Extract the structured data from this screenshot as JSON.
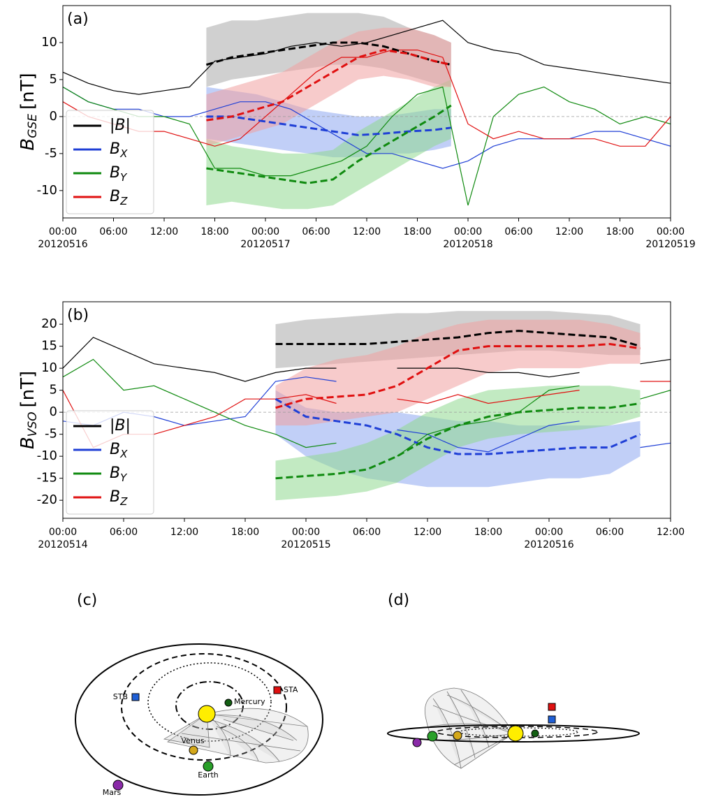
{
  "chart_data": [
    {
      "type": "line",
      "panel": "(a)",
      "ylabel": {
        "text": "B",
        "sub": "GSE",
        "unit": "[nT]"
      },
      "xlim": [
        0,
        72
      ],
      "ylim": [
        -13.7,
        15
      ],
      "xticks": [
        {
          "value": 0,
          "label": "00:00"
        },
        {
          "value": 6,
          "label": "06:00"
        },
        {
          "value": 12,
          "label": "12:00"
        },
        {
          "value": 18,
          "label": "18:00"
        },
        {
          "value": 24,
          "label": "00:00"
        },
        {
          "value": 30,
          "label": "06:00"
        },
        {
          "value": 36,
          "label": "12:00"
        },
        {
          "value": 42,
          "label": "18:00"
        },
        {
          "value": 48,
          "label": "00:00"
        },
        {
          "value": 54,
          "label": "06:00"
        },
        {
          "value": 60,
          "label": "12:00"
        },
        {
          "value": 66,
          "label": "18:00"
        },
        {
          "value": 72,
          "label": "00:00"
        }
      ],
      "xdates": [
        {
          "value": 0,
          "label": "20120516"
        },
        {
          "value": 24,
          "label": "20120517"
        },
        {
          "value": 48,
          "label": "20120518"
        },
        {
          "value": 72,
          "label": "20120519"
        }
      ],
      "yticks": [
        -10,
        -5,
        0,
        5,
        10
      ],
      "hline": 0,
      "legend": "lower left",
      "series": [
        {
          "name": "|B|",
          "color": "#000000",
          "x": [
            0,
            3,
            6,
            9,
            12,
            15,
            18,
            21,
            24,
            27,
            30,
            33,
            36,
            39,
            42,
            45,
            48,
            51,
            54,
            57,
            60,
            63,
            66,
            69,
            72
          ],
          "values": [
            6,
            4.5,
            3.5,
            3,
            3.5,
            4,
            7.5,
            8,
            8.5,
            9.5,
            10,
            9.5,
            10,
            11,
            12,
            13,
            10,
            9,
            8.5,
            7,
            6.5,
            6,
            5.5,
            5,
            4.5
          ]
        },
        {
          "name": "B",
          "sub": "X",
          "color": "#1f3fd6",
          "x": [
            0,
            3,
            6,
            9,
            12,
            15,
            18,
            21,
            24,
            27,
            30,
            33,
            36,
            39,
            42,
            45,
            48,
            51,
            54,
            57,
            60,
            63,
            66,
            69,
            72
          ],
          "values": [
            4,
            2,
            1,
            1,
            0,
            0,
            1,
            2,
            2,
            1,
            -1,
            -3,
            -5,
            -5,
            -6,
            -7,
            -6,
            -4,
            -3,
            -3,
            -3,
            -2,
            -2,
            -3,
            -4
          ]
        },
        {
          "name": "B",
          "sub": "Y",
          "color": "#0f8a0f",
          "x": [
            0,
            3,
            6,
            9,
            12,
            15,
            18,
            21,
            24,
            27,
            30,
            33,
            36,
            39,
            42,
            45,
            48,
            51,
            54,
            57,
            60,
            63,
            66,
            69,
            72
          ],
          "values": [
            4,
            2,
            1,
            0,
            0,
            -1,
            -7,
            -7,
            -8,
            -8,
            -7,
            -6,
            -4,
            0,
            3,
            4,
            -12,
            0,
            3,
            4,
            2,
            1,
            -1,
            0,
            -1
          ]
        },
        {
          "name": "B",
          "sub": "Z",
          "color": "#e01010",
          "x": [
            0,
            3,
            6,
            9,
            12,
            15,
            18,
            21,
            24,
            27,
            30,
            33,
            36,
            39,
            42,
            45,
            48,
            51,
            54,
            57,
            60,
            63,
            66,
            69,
            72
          ],
          "values": [
            2,
            0,
            -1,
            -2,
            -2,
            -3,
            -4,
            -3,
            0,
            3,
            6,
            8,
            8,
            9,
            9,
            8,
            -1,
            -3,
            -2,
            -3,
            -3,
            -3,
            -4,
            -4,
            0
          ]
        },
        {
          "dashed": true,
          "color": "#000000",
          "band_color": "#a9a9a9",
          "x": [
            17,
            20,
            23,
            26,
            29,
            32,
            35,
            38,
            41,
            44,
            46
          ],
          "values": [
            7,
            8,
            8.5,
            9,
            9.5,
            10,
            10,
            9.5,
            8.5,
            7.5,
            7
          ],
          "lower": [
            4,
            5,
            5.5,
            6,
            6.5,
            7,
            7,
            6.5,
            5.5,
            4.5,
            4
          ],
          "upper": [
            12,
            13,
            13,
            13.5,
            14,
            14,
            14,
            13.5,
            12,
            11,
            10
          ]
        },
        {
          "dashed": true,
          "color": "#1f3fd6",
          "band_color": "#8ea8f0",
          "x": [
            17,
            20,
            23,
            26,
            29,
            32,
            35,
            38,
            41,
            44,
            46
          ],
          "values": [
            0,
            0,
            -0.5,
            -1,
            -1.5,
            -2,
            -2.5,
            -2.3,
            -2,
            -1.8,
            -1.5
          ],
          "lower": [
            -3,
            -3.5,
            -4,
            -4.5,
            -5,
            -5.5,
            -5.5,
            -5,
            -5,
            -4.5,
            -4
          ],
          "upper": [
            4,
            3.5,
            3,
            2,
            1,
            0.5,
            0,
            0,
            0.5,
            1,
            1
          ]
        },
        {
          "dashed": true,
          "color": "#0f8a0f",
          "band_color": "#8fd88f",
          "x": [
            17,
            20,
            23,
            26,
            29,
            32,
            35,
            38,
            41,
            44,
            46
          ],
          "values": [
            -7,
            -7.5,
            -8,
            -8.5,
            -9,
            -8.5,
            -6,
            -4,
            -2,
            0,
            1.5
          ],
          "lower": [
            -12,
            -11.5,
            -12,
            -12.5,
            -12.5,
            -12,
            -10,
            -8,
            -6,
            -4,
            -3
          ],
          "upper": [
            -3,
            -4,
            -4.5,
            -5,
            -5,
            -4.5,
            -2,
            0,
            2,
            4,
            5
          ]
        },
        {
          "dashed": true,
          "color": "#e01010",
          "band_color": "#f0a0a0",
          "x": [
            17,
            20,
            23,
            26,
            29,
            32,
            35,
            38,
            41,
            44,
            46
          ],
          "values": [
            -0.5,
            0,
            1,
            2,
            4,
            6,
            8,
            9,
            8.5,
            7.5,
            7
          ],
          "lower": [
            -4,
            -3,
            -2,
            -1,
            1,
            3,
            5,
            5.5,
            5,
            4,
            4
          ],
          "upper": [
            3,
            4,
            5,
            6,
            8,
            10,
            11.5,
            12,
            12,
            11,
            10
          ]
        }
      ]
    },
    {
      "type": "line",
      "panel": "(b)",
      "ylabel": {
        "text": "B",
        "sub": "VSO",
        "unit": "[nT]"
      },
      "xlim": [
        0,
        60
      ],
      "ylim": [
        -24.1,
        25.1
      ],
      "xticks": [
        {
          "value": 0,
          "label": "00:00"
        },
        {
          "value": 6,
          "label": "06:00"
        },
        {
          "value": 12,
          "label": "12:00"
        },
        {
          "value": 18,
          "label": "18:00"
        },
        {
          "value": 24,
          "label": "00:00"
        },
        {
          "value": 30,
          "label": "06:00"
        },
        {
          "value": 36,
          "label": "12:00"
        },
        {
          "value": 42,
          "label": "18:00"
        },
        {
          "value": 48,
          "label": "00:00"
        },
        {
          "value": 54,
          "label": "06:00"
        },
        {
          "value": 60,
          "label": "12:00"
        }
      ],
      "xdates": [
        {
          "value": 0,
          "label": "20120514"
        },
        {
          "value": 24,
          "label": "20120515"
        },
        {
          "value": 48,
          "label": "20120516"
        }
      ],
      "yticks": [
        -20,
        -15,
        -10,
        -5,
        0,
        5,
        10,
        15,
        20
      ],
      "hline": 0,
      "legend": "lower left",
      "series": [
        {
          "name": "|B|",
          "color": "#000000",
          "x": [
            0,
            3,
            6,
            9,
            12,
            15,
            18,
            21,
            24,
            27,
            30,
            33,
            36,
            39,
            42,
            45,
            48,
            51,
            54,
            57,
            60
          ],
          "values": [
            10,
            17,
            14,
            11,
            10,
            9,
            7,
            9,
            10,
            10,
            null,
            10,
            10,
            10,
            9,
            9,
            8,
            9,
            null,
            11,
            12
          ]
        },
        {
          "name": "B",
          "sub": "X",
          "color": "#1f3fd6",
          "x": [
            0,
            3,
            6,
            9,
            12,
            15,
            18,
            21,
            24,
            27,
            30,
            33,
            36,
            39,
            42,
            45,
            48,
            51,
            54,
            57,
            60
          ],
          "values": [
            -2,
            -3,
            0,
            -1,
            -3,
            -2,
            -1,
            7,
            8,
            7,
            null,
            -4,
            -5,
            -8,
            -9,
            -6,
            -3,
            -2,
            null,
            -8,
            -7
          ]
        },
        {
          "name": "B",
          "sub": "Y",
          "color": "#0f8a0f",
          "x": [
            0,
            3,
            6,
            9,
            12,
            15,
            18,
            21,
            24,
            27,
            30,
            33,
            36,
            39,
            42,
            45,
            48,
            51,
            54,
            57,
            60
          ],
          "values": [
            8,
            12,
            5,
            6,
            3,
            0,
            -3,
            -5,
            -8,
            -7,
            null,
            -10,
            -5,
            -3,
            -2,
            0,
            5,
            6,
            null,
            3,
            5
          ]
        },
        {
          "name": "B",
          "sub": "Z",
          "color": "#e01010",
          "x": [
            0,
            3,
            6,
            9,
            12,
            15,
            18,
            21,
            24,
            27,
            30,
            33,
            36,
            39,
            42,
            45,
            48,
            51,
            54,
            57,
            60
          ],
          "values": [
            5,
            -8,
            -5,
            -5,
            -3,
            -1,
            3,
            3,
            4,
            2,
            null,
            3,
            2,
            4,
            2,
            3,
            4,
            5,
            null,
            7,
            7
          ]
        },
        {
          "dashed": true,
          "color": "#000000",
          "band_color": "#a9a9a9",
          "x": [
            21,
            24,
            27,
            30,
            33,
            36,
            39,
            42,
            45,
            48,
            51,
            54,
            57
          ],
          "values": [
            15.5,
            15.5,
            15.5,
            15.5,
            16,
            16.5,
            17,
            18,
            18.5,
            18,
            17.5,
            17,
            15
          ],
          "lower": [
            10,
            10.5,
            11,
            11.5,
            12,
            12.5,
            13,
            13.5,
            14,
            14,
            13.5,
            13,
            13
          ],
          "upper": [
            20,
            21,
            21.5,
            22,
            22.5,
            22.5,
            23,
            23,
            23,
            23,
            22.5,
            22,
            20
          ]
        },
        {
          "dashed": true,
          "color": "#1f3fd6",
          "band_color": "#8ea8f0",
          "x": [
            21,
            24,
            27,
            30,
            33,
            36,
            39,
            42,
            45,
            48,
            51,
            54,
            57
          ],
          "values": [
            3,
            -1,
            -2,
            -3,
            -5,
            -8,
            -9.5,
            -9.5,
            -9,
            -8.5,
            -8,
            -8,
            -5
          ],
          "lower": [
            -5,
            -10,
            -13,
            -15,
            -16,
            -17,
            -17,
            -17,
            -16,
            -15,
            -15,
            -14,
            -10
          ],
          "upper": [
            5,
            1,
            0,
            0,
            0,
            -1,
            -2,
            -2,
            -3,
            -3,
            -3,
            -3,
            -2
          ]
        },
        {
          "dashed": true,
          "color": "#0f8a0f",
          "band_color": "#8fd88f",
          "x": [
            21,
            24,
            27,
            30,
            33,
            36,
            39,
            42,
            45,
            48,
            51,
            54,
            57
          ],
          "values": [
            -15,
            -14.5,
            -14,
            -13,
            -10,
            -6,
            -3,
            -1,
            0,
            0.5,
            1,
            1,
            2
          ],
          "lower": [
            -20,
            -19.5,
            -19,
            -18,
            -16,
            -12,
            -8,
            -6,
            -5,
            -4.5,
            -4,
            -3,
            -1
          ],
          "upper": [
            -11,
            -10,
            -9,
            -7,
            -4,
            0,
            3,
            5,
            5.5,
            6,
            6,
            6,
            5
          ]
        },
        {
          "dashed": true,
          "color": "#e01010",
          "band_color": "#f0a0a0",
          "x": [
            21,
            24,
            27,
            30,
            33,
            36,
            39,
            42,
            45,
            48,
            51,
            54,
            57
          ],
          "values": [
            1,
            3,
            3.5,
            4,
            6,
            10,
            14,
            15,
            15,
            15,
            15,
            15.5,
            14.5
          ],
          "lower": [
            -3,
            -3,
            -2,
            -1,
            0,
            3,
            6,
            9,
            10,
            10,
            10,
            11,
            11
          ],
          "upper": [
            6,
            10,
            12,
            13,
            15,
            18,
            20,
            21,
            21,
            21,
            21,
            20,
            18
          ]
        }
      ]
    }
  ],
  "diagrams": [
    {
      "label": "(c)",
      "bodies": [
        "STB",
        "STA",
        "Mercury",
        "Venus",
        "Earth",
        "Mars"
      ]
    },
    {
      "label": "(d)"
    }
  ]
}
